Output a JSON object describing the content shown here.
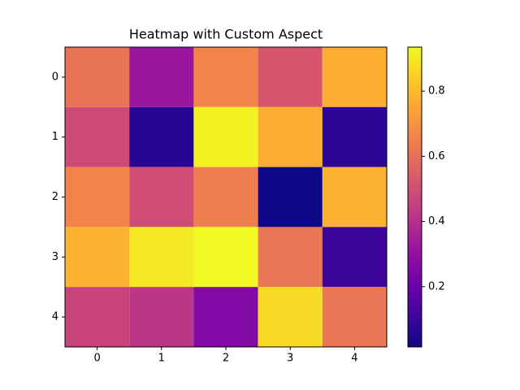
{
  "chart_data": {
    "type": "heatmap",
    "title": "Heatmap with Custom Aspect",
    "values": [
      [
        0.61,
        0.32,
        0.66,
        0.52,
        0.77
      ],
      [
        0.48,
        0.06,
        0.92,
        0.77,
        0.07
      ],
      [
        0.66,
        0.49,
        0.64,
        0.015,
        0.78
      ],
      [
        0.78,
        0.9,
        0.935,
        0.62,
        0.1
      ],
      [
        0.46,
        0.42,
        0.26,
        0.87,
        0.62
      ]
    ],
    "colormap": "plasma",
    "xlim": [
      -0.5,
      4.5
    ],
    "xticks": [
      0,
      1,
      2,
      3,
      4
    ],
    "ylim": [
      4.5,
      -0.5
    ],
    "yticks": [
      0,
      1,
      2,
      3,
      4
    ],
    "clim": [
      0.015,
      0.935
    ],
    "cticks": [
      0.2,
      0.4,
      0.6,
      0.8
    ]
  }
}
